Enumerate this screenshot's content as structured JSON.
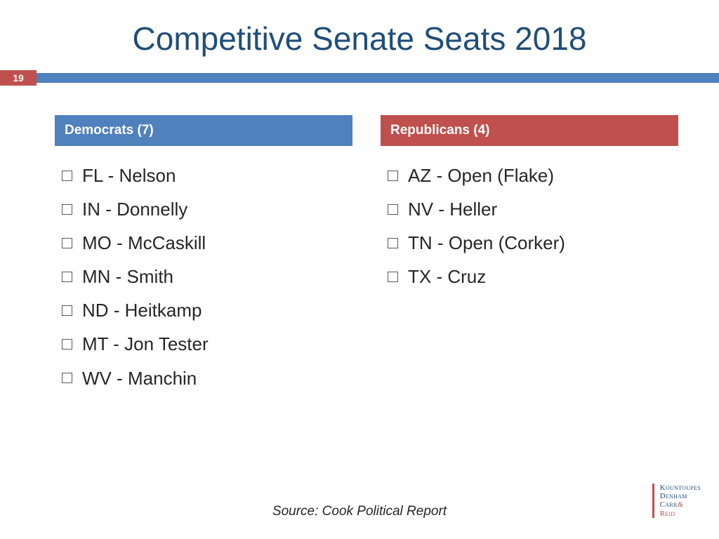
{
  "title": "Competitive Senate Seats 2018",
  "title_color": "#1f4e79",
  "page_number": "19",
  "page_number_bg": "#c0504d",
  "stripe_color": "#4f81bd",
  "columns": [
    {
      "header": "Democrats (7)",
      "header_bg": "#4f81bd",
      "items": [
        "FL - Nelson",
        "IN - Donnelly",
        "MO - McCaskill",
        "MN - Smith",
        "ND - Heitkamp",
        "MT - Jon Tester",
        "WV - Manchin"
      ]
    },
    {
      "header": "Republicans (4)",
      "header_bg": "#c0504d",
      "items": [
        "AZ - Open (Flake)",
        "NV - Heller",
        "TN - Open (Corker)",
        "TX - Cruz"
      ]
    }
  ],
  "source": "Source:  Cook Political Report",
  "logo": {
    "bar_color": "#c0504d",
    "lines": [
      {
        "text": "Kountoupes",
        "color": "#1f4e79"
      },
      {
        "text": "Denham",
        "color": "#1f4e79"
      },
      {
        "text": "Carr",
        "color": "#1f4e79",
        "amp": "&",
        "amp_color": "#c0504d"
      },
      {
        "text": "Reid",
        "color": "#c0504d"
      }
    ]
  }
}
